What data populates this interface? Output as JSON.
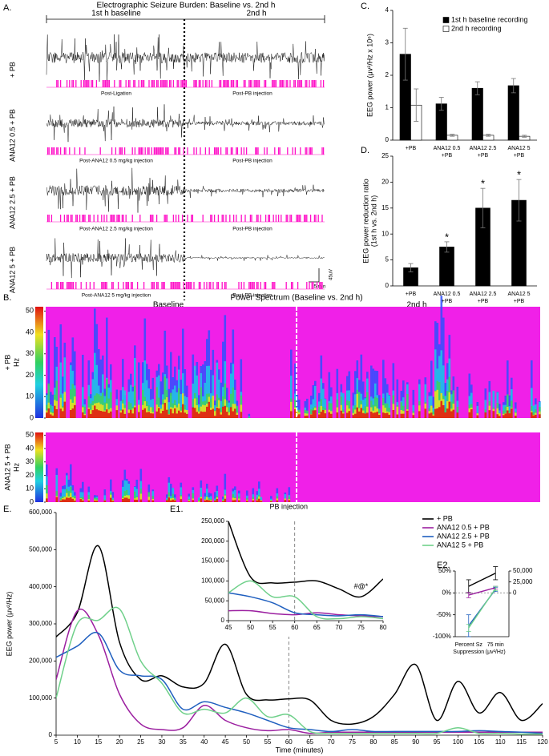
{
  "panel_a": {
    "label": "A.",
    "title": "Electrographic Seizure Burden: Baseline vs. 2nd h",
    "periods": [
      "1st h baseline",
      "2nd h"
    ],
    "rows": [
      {
        "name": "+ PB",
        "captions": [
          "Post-Ligation",
          "Post-PB injection"
        ]
      },
      {
        "name": "ANA12 0.5 + PB",
        "captions": [
          "Post-ANA12 0.5 mg/kg injection",
          "Post-PB injection"
        ]
      },
      {
        "name": "ANA12 2.5 + PB",
        "captions": [
          "Post-ANA12 2.5 mg/kg injection",
          "Post-PB injection"
        ]
      },
      {
        "name": "ANA12 5 + PB",
        "captions": [
          "Post-ANA12 5 mg/kg injection",
          "Post-PB injection"
        ]
      }
    ],
    "scale_bar": [
      "45uV",
      "5 min"
    ]
  },
  "panel_b": {
    "label": "B.",
    "title": "Power Spectrum (Baseline vs. 2nd h)",
    "periods": [
      "Baseline",
      "2nd h"
    ],
    "rows": [
      "+ PB",
      "ANA12 5 + PB"
    ],
    "axis_label": "Hz",
    "ylim": [
      0,
      52
    ],
    "yticks": [
      0,
      10,
      20,
      30,
      40,
      50
    ]
  },
  "chart_data": [
    {
      "type": "bar",
      "label": "C.",
      "ylabel": [
        "EEG power (μv²/Hz x 10⁶)"
      ],
      "categories": [
        [
          "+PB"
        ],
        [
          "ANA12 0.5",
          "+PB"
        ],
        [
          "ANA12 2.5",
          "+PB"
        ],
        [
          "ANA12 5",
          "+PB"
        ]
      ],
      "series": [
        {
          "name": "1st h baseline recording",
          "color": "#000000",
          "values": [
            2.65,
            1.12,
            1.6,
            1.68
          ],
          "errors": [
            0.8,
            0.2,
            0.2,
            0.22
          ]
        },
        {
          "name": "2nd h recording",
          "color": "#ffffff",
          "values": [
            1.08,
            0.15,
            0.15,
            0.12
          ],
          "errors": [
            0.5,
            0.03,
            0.03,
            0.03
          ]
        }
      ],
      "ylim": [
        0,
        4
      ],
      "yticks": [
        0,
        1,
        2,
        3,
        4
      ],
      "legend": "upper right"
    },
    {
      "type": "bar",
      "label": "D.",
      "ylabel": [
        "EEG power reduction ratio",
        "(1st h vs. 2nd h)"
      ],
      "categories": [
        [
          "+PB"
        ],
        [
          "ANA12 0.5",
          "+PB"
        ],
        [
          "ANA12 2.5",
          "+PB"
        ],
        [
          "ANA12 5",
          "+PB"
        ]
      ],
      "series": [
        {
          "color": "#000000",
          "values": [
            3.5,
            7.5,
            15,
            16.5
          ],
          "errors": [
            0.8,
            1,
            3.8,
            4
          ],
          "significance": [
            null,
            "*",
            "*",
            "*"
          ]
        }
      ],
      "ylim": [
        0,
        25
      ],
      "yticks": [
        0,
        5,
        10,
        15,
        20,
        25
      ]
    },
    {
      "type": "line",
      "label": "E.",
      "ylabel": [
        "EEG power (μv²/Hz)"
      ],
      "xlabel": "Time (minutes)",
      "x": [
        5,
        10,
        15,
        20,
        25,
        30,
        35,
        40,
        45,
        50,
        55,
        60,
        65,
        70,
        75,
        80,
        85,
        90,
        95,
        100,
        105,
        110,
        115,
        120
      ],
      "series": [
        {
          "name": "+ PB",
          "color": "#000000",
          "values": [
            265000,
            330000,
            510000,
            250000,
            150000,
            160000,
            130000,
            140000,
            245000,
            110000,
            95000,
            98000,
            95000,
            40000,
            30000,
            50000,
            110000,
            190000,
            40000,
            145000,
            60000,
            115000,
            40000,
            85000
          ]
        },
        {
          "name": "ANA12 0.5 + PB",
          "color": "#9b1fa0",
          "values": [
            150000,
            335000,
            270000,
            110000,
            30000,
            15000,
            20000,
            80000,
            40000,
            20000,
            12000,
            15000,
            5000,
            8000,
            8000,
            8000,
            8000,
            8000,
            8000,
            8000,
            8000,
            8000,
            8000,
            8000
          ]
        },
        {
          "name": "ANA12 2.5 + PB",
          "color": "#1f5fbf",
          "values": [
            210000,
            240000,
            275000,
            175000,
            160000,
            150000,
            70000,
            90000,
            75000,
            60000,
            40000,
            20000,
            15000,
            10000,
            15000,
            10000,
            10000,
            10000,
            10000,
            10000,
            12000,
            10000,
            8000,
            5000
          ]
        },
        {
          "name": "ANA12 5 + PB",
          "color": "#6fd08a",
          "values": [
            100000,
            300000,
            310000,
            340000,
            200000,
            140000,
            60000,
            70000,
            60000,
            100000,
            50000,
            55000,
            10000,
            5000,
            5000,
            5000,
            5000,
            5000,
            5000,
            20000,
            5000,
            5000,
            3000,
            3000
          ]
        }
      ],
      "xlim": [
        5,
        120
      ],
      "xticks": [
        5,
        10,
        15,
        20,
        25,
        30,
        35,
        40,
        45,
        50,
        55,
        60,
        65,
        70,
        75,
        80,
        85,
        90,
        95,
        100,
        105,
        110,
        115,
        120
      ],
      "ylim": [
        0,
        600000
      ],
      "yticks": [
        0,
        {
          "value": 100000,
          "label": "100,000"
        },
        {
          "value": 200000,
          "label": "200,000"
        },
        {
          "value": 300000,
          "label": "300,000"
        },
        {
          "value": 400000,
          "label": "400,000"
        },
        {
          "value": 500000,
          "label": "500,000"
        },
        {
          "value": 600000,
          "label": "600,000"
        }
      ],
      "vline": 60,
      "vline_label": "PB injection",
      "legend": "upper right"
    },
    {
      "type": "line",
      "label": "E1.",
      "x": [
        45,
        50,
        55,
        60,
        65,
        70,
        75,
        80
      ],
      "series": [
        {
          "color": "#000000",
          "values": [
            250000,
            110000,
            95000,
            97000,
            100000,
            80000,
            60000,
            105000
          ]
        },
        {
          "color": "#9b1fa0",
          "values": [
            25000,
            25000,
            18000,
            15000,
            20000,
            15000,
            12000,
            10000
          ]
        },
        {
          "color": "#1f5fbf",
          "values": [
            70000,
            60000,
            45000,
            20000,
            15000,
            12000,
            15000,
            10000
          ]
        },
        {
          "color": "#6fd08a",
          "values": [
            70000,
            100000,
            60000,
            60000,
            10000,
            5000,
            10000,
            5000
          ]
        }
      ],
      "xlim": [
        45,
        80
      ],
      "xticks": [
        45,
        50,
        55,
        60,
        65,
        70,
        75,
        80
      ],
      "ylim": [
        0,
        250000
      ],
      "yticks": [
        0,
        {
          "value": 50000,
          "label": "50,000"
        },
        {
          "value": 100000,
          "label": "100,000"
        },
        {
          "value": 150000,
          "label": "150,000"
        },
        {
          "value": 200000,
          "label": "200,000"
        },
        {
          "value": 250000,
          "label": "250,000"
        }
      ],
      "vline": 60,
      "annotation": {
        "text": "#@*",
        "x": 75,
        "y": 85000
      }
    },
    {
      "type": "line",
      "label": "E2.",
      "categories": [
        [
          "Percent Sz",
          "Suppression"
        ],
        [
          "75 min",
          "(μv²/Hz)"
        ]
      ],
      "category_axes": [
        "y",
        "y2"
      ],
      "series": [
        {
          "color": "#000000",
          "values": [
            15,
            45000
          ],
          "errors": [
            15,
            15000
          ]
        },
        {
          "color": "#9b1fa0",
          "values": [
            -5,
            12000
          ],
          "errors": [
            6,
            3000
          ]
        },
        {
          "color": "#1f5fbf",
          "values": [
            -75,
            8000
          ],
          "errors": [
            25,
            5000
          ]
        },
        {
          "color": "#6fd08a",
          "values": [
            -80,
            10000
          ],
          "errors": [
            8,
            5000
          ]
        }
      ],
      "ylim": [
        -100,
        50
      ],
      "yticks": [
        {
          "value": 50,
          "label": "50%"
        },
        {
          "value": 0,
          "label": "0%"
        },
        {
          "value": -50,
          "label": "-50%"
        },
        {
          "value": -100,
          "label": "-100%"
        }
      ],
      "y2lim": [
        -100000,
        50000
      ],
      "y2ticks": [
        0,
        {
          "value": 25000,
          "label": "25,000"
        },
        {
          "value": 50000,
          "label": "50,000"
        }
      ]
    }
  ]
}
